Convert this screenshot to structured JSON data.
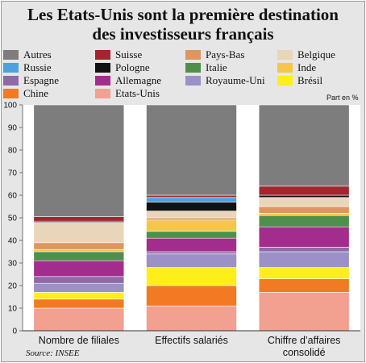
{
  "title_line1": "Les Etats-Unis sont la première destination",
  "title_line2": "des investisseurs français",
  "unit_note": "Part en %",
  "source": "Source: INSEE",
  "chart_data": {
    "type": "bar",
    "stacked": true,
    "ylim": [
      0,
      100
    ],
    "yticks": [
      "0",
      "10",
      "20",
      "30",
      "40",
      "50",
      "60",
      "70",
      "80",
      "90",
      "100"
    ],
    "grid": false,
    "categories": [
      "Nombre de filiales",
      "Effectifs salariés",
      "Chiffre d’affaires consolidé"
    ],
    "series": [
      {
        "name": "Etats-Unis",
        "color": "#f2a090",
        "values": [
          10,
          11,
          17
        ]
      },
      {
        "name": "Chine",
        "color": "#f27a22",
        "values": [
          4,
          9,
          6
        ]
      },
      {
        "name": "Brésil",
        "color": "#ffee1a",
        "values": [
          3,
          8,
          5
        ]
      },
      {
        "name": "Royaume-Uni",
        "color": "#9b90c7",
        "values": [
          4,
          6,
          7
        ]
      },
      {
        "name": "Espagne",
        "color": "#8e6aa6",
        "values": [
          3,
          1,
          2
        ]
      },
      {
        "name": "Allemagne",
        "color": "#a32d8c",
        "values": [
          7,
          6,
          9
        ]
      },
      {
        "name": "Italie",
        "color": "#4e8f4c",
        "values": [
          4,
          3,
          5
        ]
      },
      {
        "name": "Inde",
        "color": "#f6c64a",
        "values": [
          1,
          5,
          1
        ]
      },
      {
        "name": "Pays-Bas",
        "color": "#dc9660",
        "values": [
          3,
          1,
          3
        ]
      },
      {
        "name": "Belgique",
        "color": "#e9d5ba",
        "values": [
          9,
          3,
          4
        ]
      },
      {
        "name": "Pologne",
        "color": "#121212",
        "values": [
          0.5,
          4,
          1
        ]
      },
      {
        "name": "Russie",
        "color": "#4aa3dc",
        "values": [
          0,
          2,
          0
        ]
      },
      {
        "name": "Suisse",
        "color": "#a3262e",
        "values": [
          2,
          1,
          4
        ]
      },
      {
        "name": "Autres",
        "color": "#7d7d7d",
        "values": [
          49.5,
          40,
          36
        ]
      }
    ],
    "legend": [
      {
        "label": "Autres",
        "color": "#7d7d7d"
      },
      {
        "label": "Suisse",
        "color": "#a3262e"
      },
      {
        "label": "Pays-Bas",
        "color": "#dc9660"
      },
      {
        "label": "Belgique",
        "color": "#e9d5ba"
      },
      {
        "label": "Russie",
        "color": "#4aa3dc"
      },
      {
        "label": "Pologne",
        "color": "#121212"
      },
      {
        "label": "Italie",
        "color": "#4e8f4c"
      },
      {
        "label": "Inde",
        "color": "#f6c64a"
      },
      {
        "label": "Espagne",
        "color": "#8e6aa6"
      },
      {
        "label": "Allemagne",
        "color": "#a32d8c"
      },
      {
        "label": "Royaume-Uni",
        "color": "#9b90c7"
      },
      {
        "label": "Brésil",
        "color": "#ffee1a"
      },
      {
        "label": "Chine",
        "color": "#f27a22"
      },
      {
        "label": "Etats-Unis",
        "color": "#f2a090"
      }
    ],
    "legend_placement": "top"
  }
}
